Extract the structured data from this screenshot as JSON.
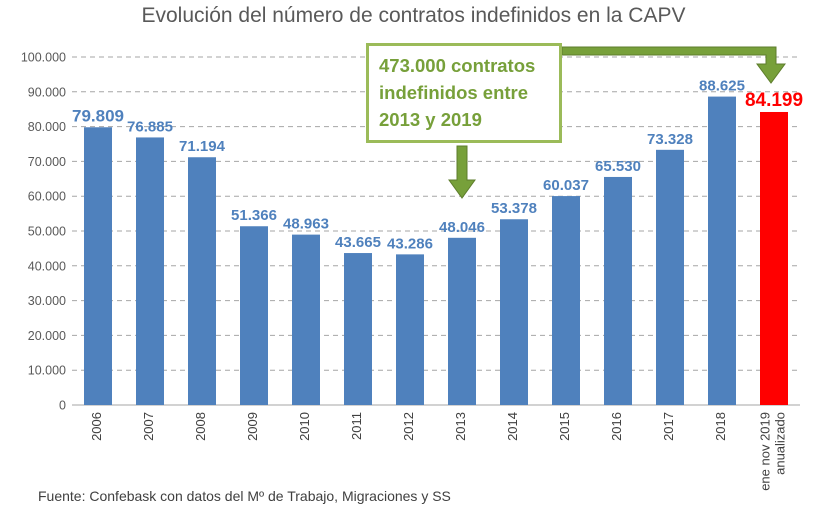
{
  "chart_data": {
    "type": "bar",
    "title": "Evolución del número de contratos indefinidos en la CAPV",
    "categories": [
      "2006",
      "2007",
      "2008",
      "2009",
      "2010",
      "2011",
      "2012",
      "2013",
      "2014",
      "2015",
      "2016",
      "2017",
      "2018",
      "ene nov 2019 anualizado"
    ],
    "category_lines": [
      [
        "2006"
      ],
      [
        "2007"
      ],
      [
        "2008"
      ],
      [
        "2009"
      ],
      [
        "2010"
      ],
      [
        "2011"
      ],
      [
        "2012"
      ],
      [
        "2013"
      ],
      [
        "2014"
      ],
      [
        "2015"
      ],
      [
        "2016"
      ],
      [
        "2017"
      ],
      [
        "2018"
      ],
      [
        "ene nov 2019",
        "anualizado"
      ]
    ],
    "values": [
      79809,
      76885,
      71194,
      51366,
      48963,
      43665,
      43286,
      48046,
      53378,
      60037,
      65530,
      73328,
      88625,
      84199
    ],
    "value_labels": [
      "79.809",
      "76.885",
      "71.194",
      "51.366",
      "48.963",
      "43.665",
      "43.286",
      "48.046",
      "53.378",
      "60.037",
      "65.530",
      "73.328",
      "88.625",
      "84.199"
    ],
    "y_ticks": [
      0,
      10000,
      20000,
      30000,
      40000,
      50000,
      60000,
      70000,
      80000,
      90000,
      100000
    ],
    "y_tick_labels": [
      "0",
      "10.000",
      "20.000",
      "30.000",
      "40.000",
      "50.000",
      "60.000",
      "70.000",
      "80.000",
      "90.000",
      "100.000"
    ],
    "ylim": [
      0,
      100000
    ],
    "grid": true,
    "xlabel": "",
    "ylabel": ""
  },
  "annotation": {
    "lines": [
      "473.000 contratos",
      "indefinidos entre",
      "2013 y 2019"
    ]
  },
  "source": "Fuente: Confebask con datos del Mº de Trabajo, Migraciones y SS",
  "colors": {
    "bar": "#4f81bd",
    "bar_highlight": "#ff0000",
    "label": "#4f81bd",
    "label_highlight": "#ff0000",
    "callout": "#9bbb59",
    "arrow": "#77a03a"
  }
}
